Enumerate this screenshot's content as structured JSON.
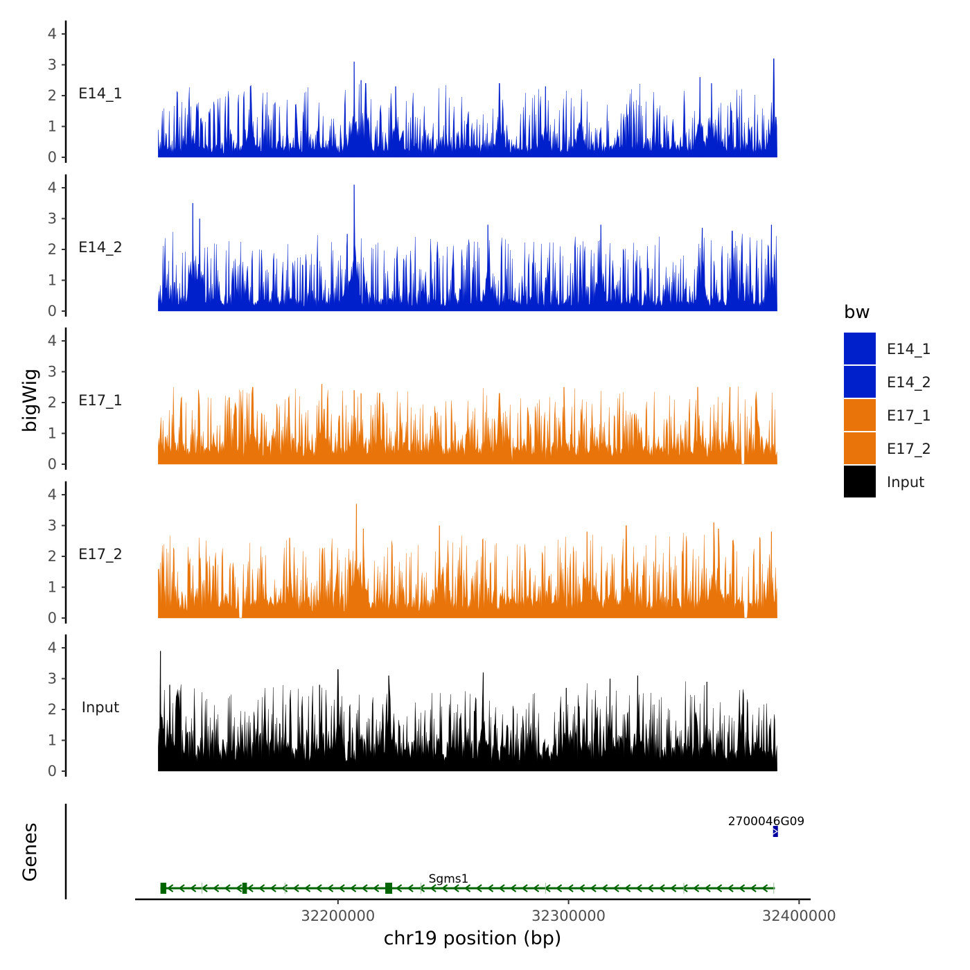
{
  "chart_data": {
    "type": "area",
    "y_axis_title": "bigWig",
    "genes_axis_title": "Genes",
    "x_axis_title": "chr19 position (bp)",
    "xlim": [
      32112000,
      32405000
    ],
    "data_range": [
      32122000,
      32390500
    ],
    "x_ticks": [
      {
        "value": 32200000,
        "label": "32200000"
      },
      {
        "value": 32300000,
        "label": "32300000"
      },
      {
        "value": 32400000,
        "label": "32400000"
      }
    ],
    "y_ticks": [
      {
        "value": 0,
        "label": "0"
      },
      {
        "value": 1,
        "label": "1"
      },
      {
        "value": 2,
        "label": "2"
      },
      {
        "value": 3,
        "label": "3"
      },
      {
        "value": 4,
        "label": "4"
      }
    ],
    "ylim": [
      0,
      4.3
    ],
    "tracks": [
      {
        "name": "E14_1",
        "group": "E14",
        "color": "#0020CC",
        "baseline": 0.3,
        "spread": 0.9,
        "max": 3.2,
        "peaks": [
          [
            32162000,
            2.3
          ],
          [
            32207000,
            3.1
          ],
          [
            32210000,
            2.5
          ],
          [
            32212000,
            2.4
          ],
          [
            32225000,
            2.3
          ],
          [
            32270000,
            2.4
          ],
          [
            32290000,
            2.3
          ],
          [
            32357000,
            2.6
          ],
          [
            32362000,
            2.4
          ],
          [
            32389000,
            3.2
          ]
        ],
        "gaps": []
      },
      {
        "name": "E14_2",
        "group": "E14",
        "color": "#0020CC",
        "baseline": 0.3,
        "spread": 1.0,
        "max": 4.1,
        "peaks": [
          [
            32137000,
            3.5
          ],
          [
            32140000,
            3.0
          ],
          [
            32204000,
            2.5
          ],
          [
            32207000,
            4.1
          ],
          [
            32265000,
            2.8
          ],
          [
            32314000,
            2.8
          ],
          [
            32358000,
            2.7
          ],
          [
            32371000,
            2.6
          ],
          [
            32388000,
            2.8
          ]
        ],
        "gaps": []
      },
      {
        "name": "E17_1",
        "group": "E17",
        "color": "#E8740A",
        "baseline": 0.5,
        "spread": 0.9,
        "max": 2.6,
        "peaks": [
          [
            32163000,
            2.5
          ],
          [
            32193000,
            2.6
          ],
          [
            32207000,
            2.4
          ],
          [
            32210000,
            2.3
          ],
          [
            32218000,
            2.3
          ],
          [
            32270000,
            2.3
          ],
          [
            32298000,
            2.5
          ],
          [
            32356000,
            2.5
          ],
          [
            32370000,
            2.5
          ]
        ],
        "gaps": [
          [
            32375000,
            32376500
          ]
        ]
      },
      {
        "name": "E17_2",
        "group": "E17",
        "color": "#E8740A",
        "baseline": 0.5,
        "spread": 1.0,
        "max": 3.7,
        "peaks": [
          [
            32179000,
            2.6
          ],
          [
            32208000,
            3.7
          ],
          [
            32211000,
            2.9
          ],
          [
            32244000,
            3.0
          ],
          [
            32308000,
            2.8
          ],
          [
            32325000,
            3.0
          ],
          [
            32363000,
            3.1
          ],
          [
            32365000,
            2.9
          ],
          [
            32388000,
            2.8
          ]
        ],
        "gaps": [
          [
            32157000,
            32158500
          ],
          [
            32376000,
            32377500
          ]
        ]
      },
      {
        "name": "Input",
        "group": "Input",
        "color": "#000000",
        "baseline": 0.7,
        "spread": 1.0,
        "max": 3.9,
        "peaks": [
          [
            32123000,
            3.9
          ],
          [
            32127000,
            2.8
          ],
          [
            32192000,
            2.8
          ],
          [
            32200000,
            3.3
          ],
          [
            32222000,
            3.1
          ],
          [
            32263000,
            3.2
          ],
          [
            32299000,
            2.7
          ],
          [
            32318000,
            3.0
          ],
          [
            32330000,
            3.1
          ],
          [
            32360000,
            2.9
          ]
        ],
        "gaps": []
      }
    ],
    "legend": {
      "title": "bw",
      "position": "right",
      "entries": [
        {
          "label": "E14_1",
          "color": "#0020CC"
        },
        {
          "label": "E14_2",
          "color": "#0020CC"
        },
        {
          "label": "E17_1",
          "color": "#E8740A"
        },
        {
          "label": "E17_2",
          "color": "#E8740A"
        },
        {
          "label": "Input",
          "color": "#000000"
        }
      ]
    },
    "genes": [
      {
        "name": "Sgms1",
        "start": 32123000,
        "end": 32389500,
        "strand": "-",
        "color": "#006400",
        "exons": [
          [
            32123000,
            32125500
          ],
          [
            32158500,
            32160500
          ],
          [
            32220500,
            32223500
          ]
        ]
      },
      {
        "name": "2700046G09",
        "start": 32389000,
        "end": 32391000,
        "strand": "+",
        "color": "#0000A0",
        "exons": [
          [
            32389000,
            32391000
          ]
        ]
      }
    ]
  }
}
